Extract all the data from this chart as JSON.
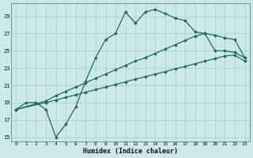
{
  "xlabel": "Humidex (Indice chaleur)",
  "bg_color": "#cce8e8",
  "line_color": "#1a6b60",
  "grid_color": "#aacece",
  "xlim": [
    0,
    23
  ],
  "ylim": [
    15,
    30
  ],
  "xticks": [
    0,
    1,
    2,
    3,
    4,
    5,
    6,
    7,
    8,
    9,
    10,
    11,
    12,
    13,
    14,
    15,
    16,
    17,
    18,
    19,
    20,
    21,
    22,
    23
  ],
  "yticks": [
    15,
    17,
    19,
    21,
    23,
    25,
    27,
    29
  ],
  "curve1_x": [
    0,
    1,
    2,
    3,
    4,
    5,
    6,
    7,
    8,
    9,
    10,
    11,
    12,
    13,
    14,
    15,
    16,
    17,
    18,
    19,
    20,
    21,
    22,
    23
  ],
  "curve1_y": [
    18.2,
    19.0,
    19.0,
    18.2,
    15.0,
    16.5,
    18.5,
    21.5,
    24.2,
    26.3,
    27.0,
    29.5,
    28.2,
    29.5,
    29.8,
    29.3,
    28.8,
    28.5,
    27.2,
    27.0,
    25.0,
    25.0,
    24.8,
    24.2
  ],
  "curve2_x": [
    0,
    3,
    4,
    5,
    6,
    7,
    8,
    9,
    10,
    11,
    12,
    13,
    14,
    15,
    16,
    17,
    18,
    19,
    20,
    21,
    22,
    23
  ],
  "curve2_y": [
    18.2,
    19.2,
    19.8,
    20.3,
    20.8,
    21.3,
    21.8,
    22.3,
    22.8,
    23.3,
    23.8,
    24.2,
    24.7,
    25.2,
    25.7,
    26.2,
    26.7,
    27.0,
    26.8,
    26.5,
    26.3,
    24.2
  ],
  "curve3_x": [
    0,
    3,
    4,
    5,
    6,
    7,
    8,
    9,
    10,
    11,
    12,
    13,
    14,
    15,
    16,
    17,
    18,
    19,
    20,
    21,
    22,
    23
  ],
  "curve3_y": [
    18.2,
    19.0,
    19.3,
    19.6,
    19.9,
    20.2,
    20.5,
    20.8,
    21.1,
    21.4,
    21.7,
    22.0,
    22.3,
    22.6,
    22.9,
    23.2,
    23.5,
    23.8,
    24.1,
    24.4,
    24.5,
    23.8
  ]
}
